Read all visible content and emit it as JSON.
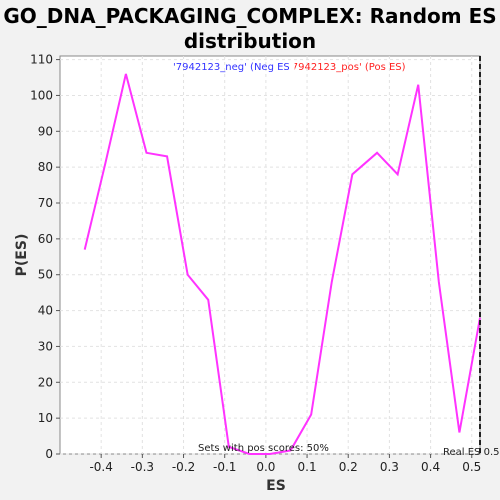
{
  "chart_data": {
    "type": "line",
    "title_line1": "GO_DNA_PACKAGING_COMPLEX: Random ES",
    "title_line2": "distribution",
    "xlabel": "ES",
    "ylabel": "P(ES)",
    "xlim": [
      -0.5,
      0.52
    ],
    "ylim": [
      0,
      111
    ],
    "xticks": [
      -0.4,
      -0.3,
      -0.2,
      -0.1,
      0.0,
      0.1,
      0.2,
      0.3,
      0.4,
      0.5
    ],
    "xtick_labels": [
      "-0.4",
      "-0.3",
      "-0.2",
      "-0.1",
      "0.0",
      "0.1",
      "0.2",
      "0.3",
      "0.4",
      "0.5"
    ],
    "yticks": [
      0,
      10,
      20,
      30,
      40,
      50,
      60,
      70,
      80,
      90,
      100,
      110
    ],
    "ytick_labels": [
      "0",
      "10",
      "20",
      "30",
      "40",
      "50",
      "60",
      "70",
      "80",
      "90",
      "100",
      "110"
    ],
    "grid": true,
    "series": [
      {
        "color": "#ff33ff",
        "x": [
          -0.44,
          -0.39,
          -0.34,
          -0.29,
          -0.24,
          -0.19,
          -0.14,
          -0.09,
          -0.04,
          0.01,
          0.06,
          0.11,
          0.16,
          0.21,
          0.27,
          0.32,
          0.37,
          0.42,
          0.47,
          0.52
        ],
        "y": [
          57,
          81,
          106,
          84,
          83,
          50,
          43,
          2,
          0,
          0,
          1,
          11,
          48,
          78,
          84,
          78,
          103,
          48,
          6,
          38
        ]
      }
    ],
    "real_es": {
      "x": 0.52,
      "label": "Real ES 0.5"
    },
    "legend_neg": "'7942123_neg' (Neg ES)",
    "legend_pos": "'7942123_pos' (Pos ES)",
    "annotation": "Sets with pos scores: 50%"
  }
}
